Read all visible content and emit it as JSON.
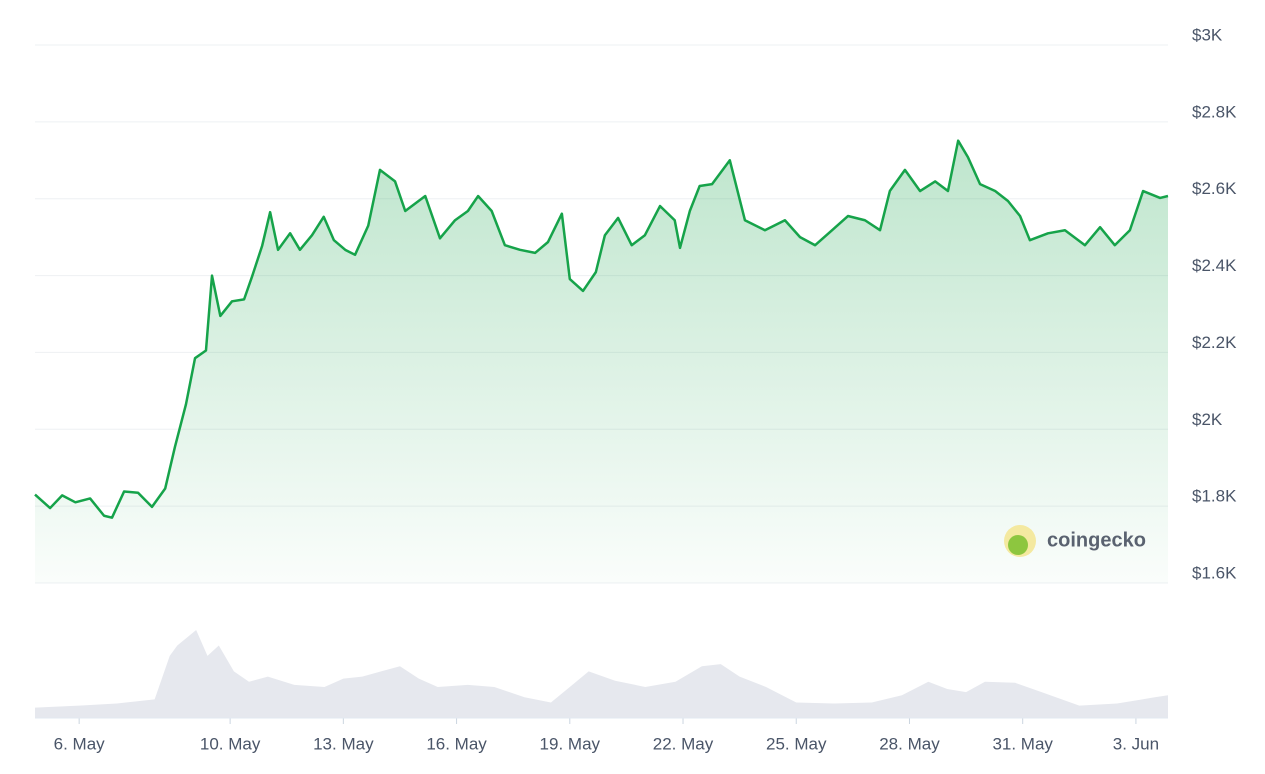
{
  "chart_data": {
    "type": "area",
    "x": [
      -1.17,
      -0.77,
      -0.45,
      -0.1,
      0.29,
      0.66,
      0.87,
      1.19,
      1.56,
      1.93,
      2.28,
      2.54,
      2.83,
      3.07,
      3.36,
      3.52,
      3.74,
      4.05,
      4.37,
      4.58,
      4.85,
      5.06,
      5.27,
      5.59,
      5.85,
      6.17,
      6.48,
      6.75,
      7.05,
      7.31,
      7.66,
      7.97,
      8.37,
      8.64,
      9.17,
      9.56,
      9.96,
      10.3,
      10.57,
      10.93,
      11.28,
      11.68,
      12.08,
      12.42,
      12.79,
      13.0,
      13.35,
      13.69,
      13.93,
      14.28,
      14.64,
      14.99,
      15.39,
      15.78,
      15.92,
      16.18,
      16.44,
      16.77,
      17.24,
      17.64,
      18.17,
      18.7,
      19.1,
      19.5,
      19.95,
      20.37,
      20.82,
      21.22,
      21.48,
      21.88,
      22.28,
      22.68,
      23.02,
      23.29,
      23.55,
      23.87,
      24.27,
      24.61,
      24.93,
      25.19,
      25.67,
      26.12,
      26.65,
      27.05,
      27.44,
      27.84,
      28.19,
      28.64,
      28.85
    ],
    "series": [
      {
        "color": "#16a34a",
        "values": [
          1830,
          1795,
          1828,
          1810,
          1820,
          1775,
          1770,
          1838,
          1835,
          1798,
          1846,
          1955,
          2065,
          2185,
          2205,
          2400,
          2295,
          2333,
          2338,
          2397,
          2478,
          2565,
          2467,
          2510,
          2467,
          2505,
          2553,
          2492,
          2467,
          2454,
          2530,
          2675,
          2645,
          2568,
          2607,
          2497,
          2544,
          2568,
          2607,
          2568,
          2479,
          2467,
          2459,
          2487,
          2561,
          2391,
          2360,
          2409,
          2505,
          2550,
          2479,
          2505,
          2581,
          2544,
          2472,
          2568,
          2633,
          2638,
          2700,
          2544,
          2518,
          2544,
          2500,
          2479,
          2518,
          2555,
          2544,
          2518,
          2620,
          2675,
          2620,
          2645,
          2620,
          2751,
          2708,
          2638,
          2620,
          2594,
          2555,
          2492,
          2510,
          2518,
          2479,
          2526,
          2479,
          2518,
          2620,
          2602,
          2607
        ]
      }
    ],
    "volume": {
      "x": [
        -1.17,
        0,
        1,
        2,
        2.4,
        2.6,
        3.1,
        3.4,
        3.7,
        4.1,
        4.5,
        5,
        5.7,
        6.5,
        7,
        7.5,
        8,
        8.5,
        9,
        9.5,
        10.3,
        11,
        11.8,
        12.5,
        13,
        13.5,
        14.2,
        15,
        15.8,
        16.5,
        17,
        17.5,
        18.2,
        19,
        20,
        21,
        21.8,
        22.5,
        23,
        23.5,
        24,
        24.8,
        25.5,
        26.5,
        27.5,
        28.5,
        28.85
      ],
      "values": [
        10,
        12,
        14,
        18,
        60,
        70,
        85,
        60,
        70,
        45,
        35,
        40,
        32,
        30,
        38,
        40,
        45,
        50,
        38,
        30,
        32,
        30,
        20,
        15,
        30,
        45,
        36,
        30,
        35,
        50,
        52,
        40,
        30,
        15,
        14,
        15,
        22,
        35,
        28,
        25,
        35,
        34,
        25,
        12,
        14,
        20,
        22
      ]
    },
    "xlim": [
      -1.17,
      28.85
    ],
    "xticks": [
      {
        "value": 0,
        "label": "6. May"
      },
      {
        "value": 4,
        "label": "10. May"
      },
      {
        "value": 7,
        "label": "13. May"
      },
      {
        "value": 10,
        "label": "16. May"
      },
      {
        "value": 13,
        "label": "19. May"
      },
      {
        "value": 16,
        "label": "22. May"
      },
      {
        "value": 19,
        "label": "25. May"
      },
      {
        "value": 22,
        "label": "28. May"
      },
      {
        "value": 25,
        "label": "31. May"
      },
      {
        "value": 28,
        "label": "3. Jun"
      }
    ],
    "ylim": [
      1600,
      3000
    ],
    "yticks": [
      {
        "value": 3000,
        "label": "$3K"
      },
      {
        "value": 2800,
        "label": "$2.8K"
      },
      {
        "value": 2600,
        "label": "$2.6K"
      },
      {
        "value": 2400,
        "label": "$2.4K"
      },
      {
        "value": 2200,
        "label": "$2.2K"
      },
      {
        "value": 2000,
        "label": "$2K"
      },
      {
        "value": 1800,
        "label": "$1.8K"
      },
      {
        "value": 1600,
        "label": "$1.6K"
      }
    ],
    "grid": true,
    "watermark": "coingecko"
  }
}
